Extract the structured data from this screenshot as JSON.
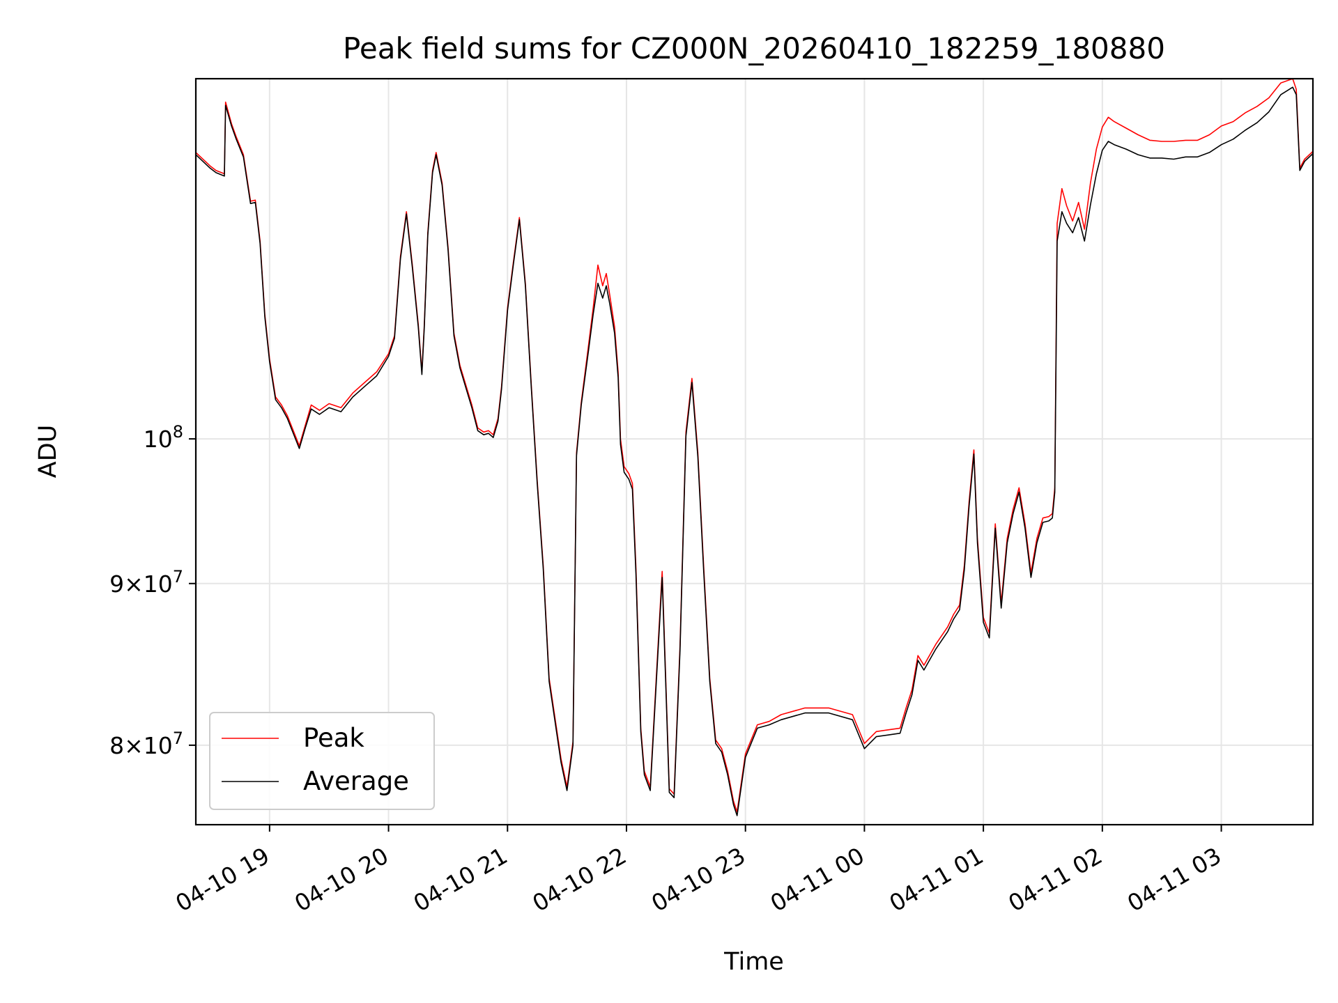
{
  "chart_data": {
    "type": "line",
    "title": "Peak field sums for CZ000N_20260410_182259_180880",
    "xlabel": "Time",
    "ylabel": "ADU",
    "yscale": "log",
    "ylim": [
      75500000,
      130000000
    ],
    "x_unit": "hours since 04-10 18:00",
    "xlim": [
      18.38,
      27.77
    ],
    "grid": true,
    "legend_position": "lower-left",
    "colors": {
      "Peak": "#ff0000",
      "Average": "#000000",
      "axes": "#000000",
      "grid": "#e6e6e6"
    },
    "x_ticks": [
      {
        "value": 19,
        "label": "04-10 19"
      },
      {
        "value": 20,
        "label": "04-10 20"
      },
      {
        "value": 21,
        "label": "04-10 21"
      },
      {
        "value": 22,
        "label": "04-10 22"
      },
      {
        "value": 23,
        "label": "04-10 23"
      },
      {
        "value": 24,
        "label": "04-11 00"
      },
      {
        "value": 25,
        "label": "04-11 01"
      },
      {
        "value": 26,
        "label": "04-11 02"
      },
      {
        "value": 27,
        "label": "04-11 03"
      }
    ],
    "y_ticks": [
      {
        "value": 80000000,
        "mantissa": "8",
        "base": "10",
        "exponent": "7"
      },
      {
        "value": 90000000,
        "mantissa": "9",
        "base": "10",
        "exponent": "7"
      },
      {
        "value": 100000000,
        "mantissa": "",
        "base": "10",
        "exponent": "8"
      }
    ],
    "series": [
      {
        "name": "Peak",
        "x": [
          18.38,
          18.45,
          18.5,
          18.55,
          18.62,
          18.63,
          18.68,
          18.72,
          18.78,
          18.84,
          18.88,
          18.92,
          18.96,
          19.0,
          19.05,
          19.1,
          19.15,
          19.25,
          19.3,
          19.35,
          19.42,
          19.5,
          19.6,
          19.7,
          19.8,
          19.9,
          20.0,
          20.05,
          20.1,
          20.15,
          20.2,
          20.25,
          20.28,
          20.3,
          20.33,
          20.37,
          20.4,
          20.45,
          20.5,
          20.55,
          20.6,
          20.65,
          20.7,
          20.75,
          20.8,
          20.84,
          20.88,
          20.92,
          20.95,
          21.0,
          21.05,
          21.1,
          21.15,
          21.2,
          21.25,
          21.3,
          21.35,
          21.45,
          21.5,
          21.55,
          21.58,
          21.62,
          21.68,
          21.72,
          21.76,
          21.8,
          21.83,
          21.86,
          21.9,
          21.93,
          21.95,
          21.98,
          22.02,
          22.05,
          22.08,
          22.12,
          22.15,
          22.2,
          22.25,
          22.3,
          22.33,
          22.36,
          22.4,
          22.45,
          22.5,
          22.55,
          22.6,
          22.65,
          22.7,
          22.75,
          22.8,
          22.85,
          22.9,
          22.93,
          23.0,
          23.1,
          23.2,
          23.3,
          23.5,
          23.7,
          23.9,
          24.0,
          24.1,
          24.2,
          24.3,
          24.35,
          24.4,
          24.45,
          24.5,
          24.6,
          24.7,
          24.75,
          24.8,
          24.84,
          24.88,
          24.92,
          24.95,
          25.0,
          25.05,
          25.1,
          25.15,
          25.2,
          25.25,
          25.3,
          25.35,
          25.4,
          25.45,
          25.5,
          25.55,
          25.58,
          25.6,
          25.62,
          25.66,
          25.7,
          25.75,
          25.8,
          25.85,
          25.9,
          25.95,
          26.0,
          26.05,
          26.1,
          26.2,
          26.3,
          26.4,
          26.5,
          26.6,
          26.7,
          26.8,
          26.9,
          27.0,
          27.1,
          27.2,
          27.3,
          27.4,
          27.5,
          27.6,
          27.63,
          27.66,
          27.7,
          27.77
        ],
        "y": [
          123200000,
          122500000,
          122000000,
          121600000,
          121300000,
          127800000,
          125800000,
          124600000,
          123000000,
          118900000,
          119000000,
          115500000,
          109500000,
          106000000,
          103100000,
          102500000,
          101700000,
          99500000,
          101000000,
          102500000,
          102100000,
          102600000,
          102300000,
          103400000,
          104200000,
          105000000,
          106400000,
          107800000,
          114200000,
          118000000,
          113500000,
          108700000,
          105000000,
          108600000,
          116200000,
          121600000,
          123200000,
          120500000,
          115000000,
          108000000,
          105500000,
          104000000,
          102500000,
          100800000,
          100500000,
          100600000,
          100300000,
          101500000,
          103900000,
          110000000,
          113800000,
          117500000,
          112000000,
          104000000,
          97000000,
          91200000,
          84000000,
          79200000,
          77600000,
          80200000,
          99000000,
          102700000,
          107000000,
          110000000,
          113500000,
          111800000,
          112800000,
          111000000,
          108500000,
          105000000,
          100000000,
          98000000,
          97500000,
          96800000,
          91000000,
          81000000,
          78500000,
          77600000,
          84000000,
          90800000,
          84000000,
          77500000,
          77200000,
          86000000,
          100500000,
          104500000,
          99000000,
          91000000,
          84000000,
          80300000,
          79800000,
          78500000,
          76800000,
          76200000,
          79500000,
          81200000,
          81400000,
          81800000,
          82200000,
          82200000,
          81800000,
          80100000,
          80800000,
          80900000,
          81000000,
          82200000,
          83300000,
          85400000,
          84800000,
          86100000,
          87200000,
          88000000,
          88600000,
          91200000,
          95500000,
          99200000,
          93000000,
          87800000,
          86800000,
          94000000,
          88700000,
          93000000,
          95000000,
          96500000,
          94000000,
          90700000,
          93000000,
          94400000,
          94500000,
          94700000,
          96500000,
          117000000,
          120000000,
          118500000,
          117200000,
          118800000,
          116500000,
          120500000,
          123500000,
          125500000,
          126400000,
          126000000,
          125400000,
          124800000,
          124300000,
          124200000,
          124200000,
          124300000,
          124300000,
          124800000,
          125600000,
          126000000,
          126800000,
          127400000,
          128200000,
          129600000,
          130000000,
          129000000,
          121800000,
          122600000,
          123300000
        ]
      },
      {
        "name": "Average",
        "x": [
          18.38,
          18.45,
          18.5,
          18.55,
          18.62,
          18.63,
          18.68,
          18.72,
          18.78,
          18.84,
          18.88,
          18.92,
          18.96,
          19.0,
          19.05,
          19.1,
          19.15,
          19.25,
          19.3,
          19.35,
          19.42,
          19.5,
          19.6,
          19.7,
          19.8,
          19.9,
          20.0,
          20.05,
          20.1,
          20.15,
          20.2,
          20.25,
          20.28,
          20.3,
          20.33,
          20.37,
          20.4,
          20.45,
          20.5,
          20.55,
          20.6,
          20.65,
          20.7,
          20.75,
          20.8,
          20.84,
          20.88,
          20.92,
          20.95,
          21.0,
          21.05,
          21.1,
          21.15,
          21.2,
          21.25,
          21.3,
          21.35,
          21.45,
          21.5,
          21.55,
          21.58,
          21.62,
          21.68,
          21.72,
          21.76,
          21.8,
          21.83,
          21.86,
          21.9,
          21.93,
          21.95,
          21.98,
          22.02,
          22.05,
          22.08,
          22.12,
          22.15,
          22.2,
          22.25,
          22.3,
          22.33,
          22.36,
          22.4,
          22.45,
          22.5,
          22.55,
          22.6,
          22.65,
          22.7,
          22.75,
          22.8,
          22.85,
          22.9,
          22.93,
          23.0,
          23.1,
          23.2,
          23.3,
          23.5,
          23.7,
          23.9,
          24.0,
          24.1,
          24.2,
          24.3,
          24.35,
          24.4,
          24.45,
          24.5,
          24.6,
          24.7,
          24.75,
          24.8,
          24.84,
          24.88,
          24.92,
          24.95,
          25.0,
          25.05,
          25.1,
          25.15,
          25.2,
          25.25,
          25.3,
          25.35,
          25.4,
          25.45,
          25.5,
          25.55,
          25.58,
          25.6,
          25.62,
          25.66,
          25.7,
          25.75,
          25.8,
          25.85,
          25.9,
          25.95,
          26.0,
          26.05,
          26.1,
          26.2,
          26.3,
          26.4,
          26.5,
          26.6,
          26.7,
          26.8,
          26.9,
          27.0,
          27.1,
          27.2,
          27.3,
          27.4,
          27.5,
          27.6,
          27.63,
          27.66,
          27.7,
          27.77
        ],
        "y": [
          123000000,
          122300000,
          121800000,
          121400000,
          121100000,
          127500000,
          125600000,
          124400000,
          122800000,
          118700000,
          118800000,
          115300000,
          109300000,
          105800000,
          102900000,
          102300000,
          101500000,
          99300000,
          100800000,
          102200000,
          101800000,
          102300000,
          102000000,
          103100000,
          103900000,
          104700000,
          106200000,
          107600000,
          114000000,
          117800000,
          113300000,
          108500000,
          104800000,
          108400000,
          116000000,
          121400000,
          123000000,
          120300000,
          114800000,
          107800000,
          105300000,
          103800000,
          102300000,
          100600000,
          100300000,
          100400000,
          100100000,
          101300000,
          103700000,
          109800000,
          113600000,
          117300000,
          111800000,
          103800000,
          96800000,
          91000000,
          83800000,
          79000000,
          77400000,
          80000000,
          98800000,
          102500000,
          106600000,
          109500000,
          112000000,
          110800000,
          111800000,
          110300000,
          108000000,
          104600000,
          99600000,
          97600000,
          97100000,
          96400000,
          90600000,
          80800000,
          78300000,
          77400000,
          83700000,
          90400000,
          83700000,
          77300000,
          77000000,
          85700000,
          100200000,
          104200000,
          98700000,
          90700000,
          83800000,
          80100000,
          79600000,
          78300000,
          76600000,
          76000000,
          79300000,
          81000000,
          81200000,
          81500000,
          81900000,
          81900000,
          81500000,
          79800000,
          80500000,
          80600000,
          80700000,
          81900000,
          83000000,
          85100000,
          84500000,
          85800000,
          86900000,
          87700000,
          88300000,
          90900000,
          95200000,
          98900000,
          92700000,
          87500000,
          86500000,
          93700000,
          88400000,
          92700000,
          94700000,
          96200000,
          93700000,
          90400000,
          92700000,
          94100000,
          94200000,
          94400000,
          96200000,
          115500000,
          118000000,
          117000000,
          116200000,
          117500000,
          115500000,
          118600000,
          121300000,
          123400000,
          124200000,
          123900000,
          123500000,
          123000000,
          122700000,
          122700000,
          122600000,
          122800000,
          122800000,
          123200000,
          123900000,
          124400000,
          125200000,
          125900000,
          126900000,
          128500000,
          129200000,
          128500000,
          121600000,
          122400000,
          123100000
        ]
      }
    ]
  }
}
